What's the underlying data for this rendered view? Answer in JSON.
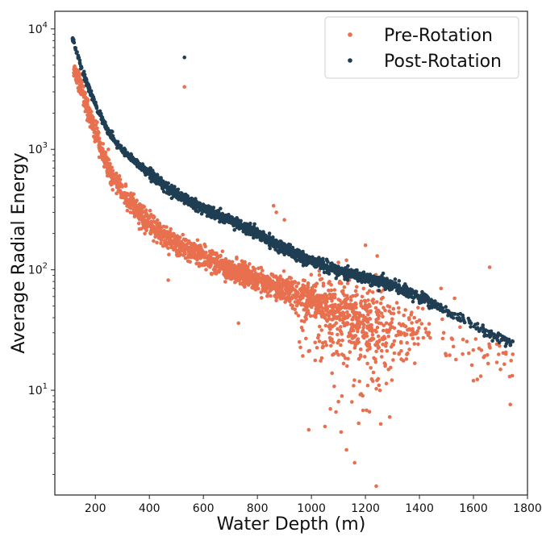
{
  "chart_data": {
    "type": "scatter",
    "title": "",
    "xlabel": "Water Depth (m)",
    "ylabel": "Average Radial Energy",
    "xscale": "linear",
    "yscale": "log",
    "xlim": [
      50,
      1800
    ],
    "ylim": [
      1.35,
      14000
    ],
    "xticks": [
      {
        "value": 200,
        "label": "200"
      },
      {
        "value": 400,
        "label": "400"
      },
      {
        "value": 600,
        "label": "600"
      },
      {
        "value": 800,
        "label": "800"
      },
      {
        "value": 1000,
        "label": "1000"
      },
      {
        "value": 1200,
        "label": "1200"
      },
      {
        "value": 1400,
        "label": "1400"
      },
      {
        "value": 1600,
        "label": "1600"
      },
      {
        "value": 1800,
        "label": "1800"
      }
    ],
    "yticks": [
      {
        "value": 10,
        "base": "10",
        "exp": "1"
      },
      {
        "value": 100,
        "base": "10",
        "exp": "2"
      },
      {
        "value": 1000,
        "base": "10",
        "exp": "3"
      },
      {
        "value": 10000,
        "base": "10",
        "exp": "4"
      }
    ],
    "legend_position": "top-right",
    "series": [
      {
        "name": "Pre-Rotation",
        "color": "#e8704f",
        "trend": [
          [
            120,
            4500
          ],
          [
            150,
            3200
          ],
          [
            200,
            1350
          ],
          [
            250,
            700
          ],
          [
            300,
            430
          ],
          [
            400,
            240
          ],
          [
            500,
            165
          ],
          [
            600,
            128
          ],
          [
            700,
            100
          ],
          [
            800,
            82
          ],
          [
            900,
            68
          ],
          [
            1000,
            57
          ],
          [
            1100,
            48
          ],
          [
            1200,
            40
          ],
          [
            1300,
            33
          ],
          [
            1400,
            28
          ],
          [
            1500,
            23
          ],
          [
            1600,
            19
          ],
          [
            1700,
            16
          ],
          [
            1750,
            15
          ]
        ],
        "outliers": [
          [
            530,
            3300
          ],
          [
            470,
            82
          ],
          [
            730,
            36
          ],
          [
            1660,
            105
          ],
          [
            1240,
            1.6
          ],
          [
            1160,
            2.5
          ],
          [
            990,
            4.7
          ],
          [
            1290,
            6
          ],
          [
            1110,
            4.5
          ],
          [
            1050,
            5
          ],
          [
            1070,
            7
          ],
          [
            1150,
            8
          ],
          [
            1130,
            3.2
          ],
          [
            1190,
            9
          ],
          [
            1250,
            11
          ],
          [
            1720,
            20
          ],
          [
            1740,
            25
          ],
          [
            1600,
            12
          ],
          [
            1560,
            20
          ],
          [
            1490,
            30
          ],
          [
            1530,
            58
          ],
          [
            1480,
            70
          ],
          [
            1510,
            45
          ],
          [
            1430,
            55
          ],
          [
            1200,
            160
          ],
          [
            1130,
            120
          ],
          [
            1100,
            115
          ],
          [
            870,
            300
          ],
          [
            860,
            340
          ],
          [
            900,
            260
          ]
        ]
      },
      {
        "name": "Post-Rotation",
        "color": "#1f3e53",
        "trend": [
          [
            115,
            8500
          ],
          [
            150,
            4600
          ],
          [
            200,
            2350
          ],
          [
            250,
            1380
          ],
          [
            300,
            980
          ],
          [
            350,
            780
          ],
          [
            400,
            640
          ],
          [
            450,
            510
          ],
          [
            500,
            430
          ],
          [
            600,
            320
          ],
          [
            700,
            260
          ],
          [
            800,
            200
          ],
          [
            900,
            150
          ],
          [
            1000,
            118
          ],
          [
            1100,
            98
          ],
          [
            1200,
            86
          ],
          [
            1300,
            74
          ],
          [
            1400,
            60
          ],
          [
            1500,
            45
          ],
          [
            1600,
            35
          ],
          [
            1700,
            27
          ],
          [
            1750,
            24
          ]
        ],
        "outliers": [
          [
            530,
            5800
          ]
        ]
      }
    ]
  }
}
